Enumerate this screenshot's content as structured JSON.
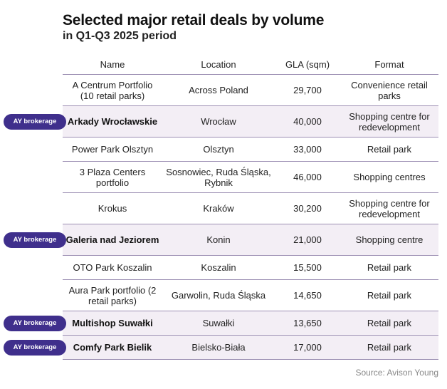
{
  "title": "Selected major retail deals by volume",
  "subtitle": "in Q1-Q3 2025 period",
  "headers": {
    "name": "Name",
    "location": "Location",
    "gla": "GLA (sqm)",
    "format": "Format"
  },
  "badge_label": "AY brokerage",
  "rows": [
    {
      "name": "A Centrum Portfolio (10 retail parks)",
      "location": "Across Poland",
      "gla": "29,700",
      "format": "Convenience retail parks",
      "ay_brokerage": false
    },
    {
      "name": "Arkady Wrocławskie",
      "location": "Wrocław",
      "gla": "40,000",
      "format": "Shopping centre for redevelopment",
      "ay_brokerage": true
    },
    {
      "name": "Power Park Olsztyn",
      "location": "Olsztyn",
      "gla": "33,000",
      "format": "Retail park",
      "ay_brokerage": false
    },
    {
      "name": "3 Plaza Centers portfolio",
      "location": "Sosnowiec, Ruda Śląska, Rybnik",
      "gla": "46,000",
      "format": "Shopping centres",
      "ay_brokerage": false
    },
    {
      "name": "Krokus",
      "location": "Kraków",
      "gla": "30,200",
      "format": "Shopping centre for redevelopment",
      "ay_brokerage": false
    },
    {
      "name": "Galeria nad Jeziorem",
      "location": "Konin",
      "gla": "21,000",
      "format": "Shopping centre",
      "ay_brokerage": true
    },
    {
      "name": "OTO Park Koszalin",
      "location": "Koszalin",
      "gla": "15,500",
      "format": "Retail park",
      "ay_brokerage": false
    },
    {
      "name": "Aura Park portfolio (2 retail parks)",
      "location": "Garwolin, Ruda Śląska",
      "gla": "14,650",
      "format": "Retail park",
      "ay_brokerage": false
    },
    {
      "name": "Multishop Suwałki",
      "location": "Suwałki",
      "gla": "13,650",
      "format": "Retail park",
      "ay_brokerage": true
    },
    {
      "name": "Comfy Park Bielik",
      "location": "Bielsko-Biała",
      "gla": "17,000",
      "format": "Retail park",
      "ay_brokerage": true
    }
  ],
  "source": "Source: Avison Young",
  "colors": {
    "badge": "#3f2f8c",
    "highlight_row": "#f3eef5",
    "divider": "#9c8fb3"
  }
}
